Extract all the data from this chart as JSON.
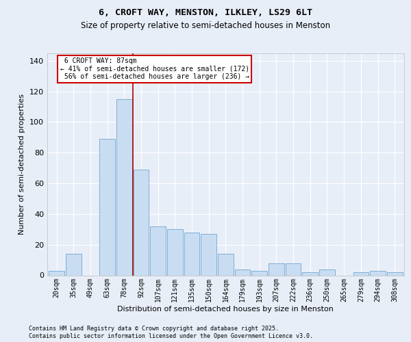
{
  "title_line1": "6, CROFT WAY, MENSTON, ILKLEY, LS29 6LT",
  "title_line2": "Size of property relative to semi-detached houses in Menston",
  "xlabel": "Distribution of semi-detached houses by size in Menston",
  "ylabel": "Number of semi-detached properties",
  "categories": [
    "20sqm",
    "35sqm",
    "49sqm",
    "63sqm",
    "78sqm",
    "92sqm",
    "107sqm",
    "121sqm",
    "135sqm",
    "150sqm",
    "164sqm",
    "179sqm",
    "193sqm",
    "207sqm",
    "222sqm",
    "236sqm",
    "250sqm",
    "265sqm",
    "279sqm",
    "294sqm",
    "308sqm"
  ],
  "values": [
    3,
    14,
    0,
    89,
    115,
    69,
    32,
    30,
    28,
    27,
    14,
    4,
    3,
    8,
    8,
    2,
    4,
    0,
    2,
    3,
    2
  ],
  "bar_color": "#c9ddf2",
  "bar_edge_color": "#7daed6",
  "property_label": "6 CROFT WAY: 87sqm",
  "pct_smaller": 41,
  "pct_larger": 56,
  "n_smaller": 172,
  "n_larger": 236,
  "annotation_box_edgecolor": "#cc0000",
  "vline_color": "#aa0000",
  "vline_x": 4.5,
  "ylim": [
    0,
    145
  ],
  "yticks": [
    0,
    20,
    40,
    60,
    80,
    100,
    120,
    140
  ],
  "bg_color": "#e8eef8",
  "plot_bg_color": "#e8eef8",
  "grid_color": "#ffffff",
  "footer_line1": "Contains HM Land Registry data © Crown copyright and database right 2025.",
  "footer_line2": "Contains public sector information licensed under the Open Government Licence v3.0."
}
